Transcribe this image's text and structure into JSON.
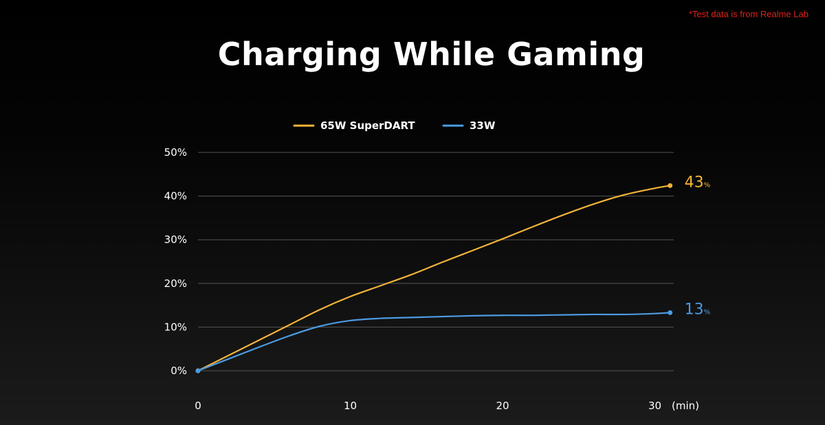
{
  "note": "*Test data is from Realme Lab",
  "colors": {
    "background": "#000000",
    "orange": "#f2b438",
    "blue": "#4c9be3",
    "grid": "#555555"
  },
  "chart_data": {
    "type": "line",
    "title": "Charging While Gaming",
    "x_unit": "(min)",
    "x_ticks": [
      0,
      10,
      20,
      30
    ],
    "y_ticks": [
      "0%",
      "10%",
      "20%",
      "30%",
      "40%",
      "50%"
    ],
    "xlim": [
      0,
      31
    ],
    "ylim": [
      0,
      50
    ],
    "grid": true,
    "legend_position": "top-center",
    "series": [
      {
        "name": "65W SuperDART",
        "color": "#f2b438",
        "end_value": "43",
        "end_unit": "%",
        "x": [
          0,
          2,
          4,
          6,
          8,
          10,
          12,
          14,
          16,
          18,
          20,
          22,
          24,
          26,
          28,
          30,
          31
        ],
        "y": [
          0,
          3.5,
          7,
          10.5,
          14,
          17,
          19.5,
          22,
          24.8,
          27.5,
          30.2,
          33,
          35.7,
          38.2,
          40.3,
          41.8,
          42.4
        ]
      },
      {
        "name": "33W",
        "color": "#4c9be3",
        "end_value": "13",
        "end_unit": "%",
        "x": [
          0,
          2,
          4,
          6,
          8,
          10,
          12,
          14,
          16,
          18,
          20,
          22,
          24,
          26,
          28,
          30,
          31
        ],
        "y": [
          0,
          2.7,
          5.4,
          8,
          10.2,
          11.5,
          12,
          12.2,
          12.4,
          12.6,
          12.7,
          12.7,
          12.8,
          12.9,
          12.9,
          13.1,
          13.3
        ]
      }
    ]
  }
}
